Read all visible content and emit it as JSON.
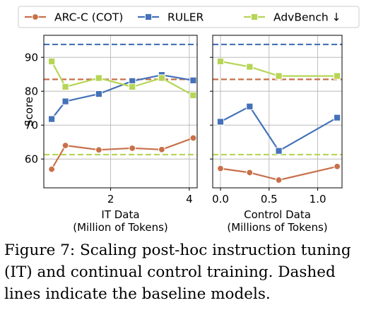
{
  "chart_data": [
    {
      "type": "line",
      "xlabel": "IT Data",
      "xlabel2": "(Million of Tokens)",
      "ylabel": "Score",
      "xlim": [
        0.3,
        4.2
      ],
      "ylim": [
        51.5,
        96.5
      ],
      "xticks": [
        2,
        4
      ],
      "yticks": [
        60,
        70,
        80,
        90
      ],
      "grid": true,
      "series": [
        {
          "name": "ARC-C (COT)",
          "color": "#c8704a",
          "marker": "circle",
          "x": [
            0.5,
            0.85,
            1.7,
            2.55,
            3.3,
            4.1
          ],
          "y": [
            57.0,
            64.0,
            62.7,
            63.2,
            62.8,
            66.2
          ]
        },
        {
          "name": "RULER",
          "color": "#4472b8",
          "marker": "square",
          "x": [
            0.5,
            0.85,
            1.7,
            2.55,
            3.3,
            4.1
          ],
          "y": [
            71.8,
            77.0,
            79.2,
            83.0,
            84.8,
            83.2
          ]
        },
        {
          "name": "AdvBench ↓",
          "color": "#b6d556",
          "marker": "square",
          "x": [
            0.5,
            0.85,
            1.7,
            2.55,
            3.3,
            4.1
          ],
          "y": [
            88.8,
            81.3,
            83.9,
            81.3,
            83.9,
            78.8
          ]
        }
      ],
      "baselines": [
        {
          "name": "ARC-C (COT)",
          "color": "#c8704a",
          "y": 83.5
        },
        {
          "name": "RULER",
          "color": "#4472b8",
          "y": 93.8
        },
        {
          "name": "AdvBench ↓",
          "color": "#b6d556",
          "y": 61.3
        }
      ]
    },
    {
      "type": "line",
      "xlabel": "Control Data",
      "xlabel2": "(Millions of Tokens)",
      "ylabel": "",
      "xlim": [
        -0.08,
        1.25
      ],
      "ylim": [
        51.5,
        96.5
      ],
      "xticks": [
        0.0,
        0.5,
        1.0
      ],
      "xticklabels": [
        "0.0",
        "0.5",
        "1.0"
      ],
      "grid": true,
      "series": [
        {
          "name": "ARC-C (COT)",
          "color": "#c8704a",
          "marker": "circle",
          "x": [
            0.0,
            0.3,
            0.6,
            1.2
          ],
          "y": [
            57.2,
            56.0,
            53.8,
            57.8
          ]
        },
        {
          "name": "RULER",
          "color": "#4472b8",
          "marker": "square",
          "x": [
            0.0,
            0.3,
            0.6,
            1.2
          ],
          "y": [
            71.0,
            75.5,
            62.4,
            72.2
          ]
        },
        {
          "name": "AdvBench ↓",
          "color": "#b6d556",
          "marker": "square",
          "x": [
            0.0,
            0.3,
            0.6,
            1.2
          ],
          "y": [
            88.8,
            87.2,
            84.5,
            84.5
          ]
        }
      ],
      "baselines": [
        {
          "name": "ARC-C (COT)",
          "color": "#c8704a",
          "y": 83.5
        },
        {
          "name": "RULER",
          "color": "#4472b8",
          "y": 93.8
        },
        {
          "name": "AdvBench ↓",
          "color": "#b6d556",
          "y": 61.3
        }
      ]
    }
  ],
  "legend": {
    "placement": "top",
    "entries": [
      {
        "label": "ARC-C (COT)",
        "color": "#c8704a",
        "marker": "circle"
      },
      {
        "label": "RULER",
        "color": "#4472b8",
        "marker": "square"
      },
      {
        "label": "AdvBench ↓",
        "color": "#b6d556",
        "marker": "square"
      }
    ]
  },
  "caption": {
    "line1": "Figure 7: Scaling post-hoc instruction tuning",
    "line2": "(IT) and continual control training.  Dashed",
    "line3": "lines indicate the baseline models."
  }
}
